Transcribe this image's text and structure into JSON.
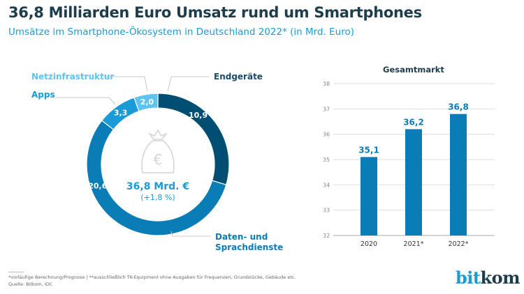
{
  "header": {
    "title": "36,8 Milliarden Euro Umsatz rund um Smartphones",
    "subtitle": "Umsätze im Smartphone-Ökosystem in Deutschland 2022* (in Mrd. Euro)"
  },
  "chart_data": [
    {
      "type": "pie",
      "variant": "donut",
      "slices": [
        {
          "name": "Endgeräte",
          "value": 10.9,
          "label": "10,9",
          "color": "#004f72"
        },
        {
          "name": "Daten- und Sprachdienste",
          "value": 20.6,
          "label": "20,6",
          "color": "#0a7cb6"
        },
        {
          "name": "Apps",
          "value": 3.3,
          "label": "3,3",
          "color": "#1a9ad6"
        },
        {
          "name": "Netzinfrastruktur",
          "value": 2.0,
          "label": "2,0",
          "color": "#5ec4ef"
        }
      ],
      "center": {
        "total": "36,8 Mrd. €",
        "change": "(+1,8 %)",
        "icon": "money-bag-euro-icon"
      },
      "legend_labels": {
        "endgeraete": "Endgeräte",
        "daten_1": "Daten- und",
        "daten_2": "Sprachdienste",
        "apps": "Apps",
        "netz": "Netzinfrastruktur"
      }
    },
    {
      "type": "bar",
      "title": "Gesamtmarkt",
      "categories": [
        "2020",
        "2021*",
        "2022*"
      ],
      "values": [
        35.1,
        36.2,
        36.8
      ],
      "value_labels": [
        "35,1",
        "36,2",
        "36,8"
      ],
      "ylim": [
        32,
        38
      ],
      "yticks": [
        "32",
        "33",
        "34",
        "35",
        "36",
        "37",
        "38"
      ],
      "grid": true,
      "color": "#0a7cb6"
    }
  ],
  "footer": {
    "note": "*vorläufige Berechnung/Prognose | **ausschließlich TK-Equipment ohne Ausgaben für Frequenzen, Grundstücke, Gebäude etc.",
    "source": "Quelle: Bitkom, IDC"
  },
  "logo": {
    "text": "bitkom",
    "part1": "bit",
    "part2": "kom"
  }
}
